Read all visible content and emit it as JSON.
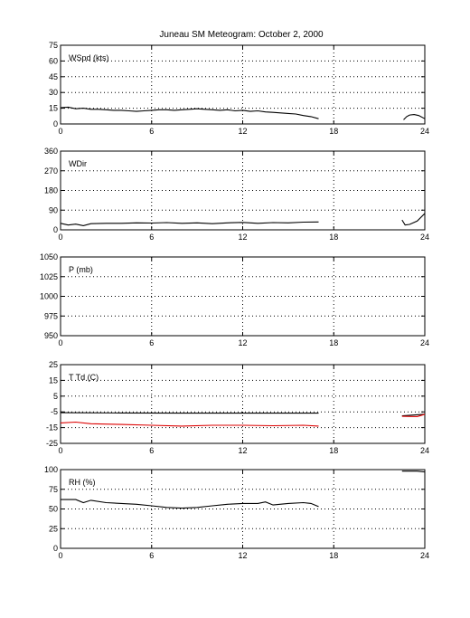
{
  "title": "Juneau SM Meteogram:    October  2, 2000",
  "colors": {
    "black": "#000000",
    "red": "#dd0000"
  },
  "x_axis": {
    "ticks": [
      "0",
      "6",
      "12",
      "18",
      "24"
    ],
    "range": [
      0,
      24
    ]
  },
  "chart_data": [
    {
      "type": "line",
      "label": "WSpd (kts)",
      "ylim": [
        0,
        75
      ],
      "yticks": [
        "75",
        "60",
        "45",
        "30",
        "15",
        "0"
      ],
      "grid": true,
      "series": [
        {
          "color": "#000000",
          "segments": [
            [
              [
                0,
                15.5
              ],
              [
                0.5,
                16
              ],
              [
                1,
                14.5
              ],
              [
                1.5,
                15
              ],
              [
                2,
                14
              ],
              [
                2.5,
                14
              ],
              [
                3,
                13.5
              ],
              [
                3.5,
                13
              ],
              [
                4,
                13
              ],
              [
                4.5,
                12.5
              ],
              [
                5,
                12
              ],
              [
                5.5,
                12.5
              ],
              [
                6,
                13
              ],
              [
                6.5,
                13.5
              ],
              [
                7,
                13.5
              ],
              [
                7.5,
                13
              ],
              [
                8,
                13.5
              ],
              [
                8.5,
                14
              ],
              [
                9,
                14.5
              ],
              [
                9.5,
                14
              ],
              [
                10,
                13.5
              ],
              [
                10.5,
                13
              ],
              [
                11,
                13.5
              ],
              [
                11.5,
                12.5
              ],
              [
                12,
                13
              ],
              [
                12.5,
                12
              ],
              [
                13,
                12.5
              ],
              [
                13.5,
                11.5
              ],
              [
                14,
                11
              ],
              [
                14.5,
                10.5
              ],
              [
                15,
                10
              ],
              [
                15.5,
                9.5
              ],
              [
                16,
                8
              ],
              [
                16.5,
                7
              ],
              [
                17,
                5
              ]
            ],
            [
              [
                22.6,
                4
              ],
              [
                22.8,
                7
              ],
              [
                23,
                8.5
              ],
              [
                23.3,
                9
              ],
              [
                23.6,
                8
              ],
              [
                24,
                5
              ]
            ]
          ]
        }
      ]
    },
    {
      "type": "line",
      "label": "WDir",
      "ylim": [
        0,
        360
      ],
      "yticks": [
        "360",
        "270",
        "180",
        "90",
        "0"
      ],
      "grid": true,
      "series": [
        {
          "color": "#000000",
          "segments": [
            [
              [
                0,
                30
              ],
              [
                0.5,
                22
              ],
              [
                1,
                26
              ],
              [
                1.5,
                19
              ],
              [
                2,
                28
              ],
              [
                3,
                30
              ],
              [
                4,
                30
              ],
              [
                5,
                32
              ],
              [
                6,
                31
              ],
              [
                7,
                33
              ],
              [
                8,
                30
              ],
              [
                9,
                32
              ],
              [
                10,
                28
              ],
              [
                11,
                32
              ],
              [
                12,
                34
              ],
              [
                13,
                30
              ],
              [
                14,
                33
              ],
              [
                15,
                32
              ],
              [
                16,
                35
              ],
              [
                17,
                36
              ]
            ],
            [
              [
                22.5,
                45
              ],
              [
                22.7,
                22
              ],
              [
                23,
                25
              ],
              [
                23.5,
                40
              ],
              [
                24,
                75
              ]
            ]
          ]
        }
      ]
    },
    {
      "type": "line",
      "label": "P (mb)",
      "ylim": [
        950,
        1050
      ],
      "yticks": [
        "1050",
        "1025",
        "1000",
        "975",
        "950"
      ],
      "grid": true,
      "series": []
    },
    {
      "type": "line",
      "label": "T Td (C)",
      "ylim": [
        -25,
        25
      ],
      "yticks": [
        "25",
        "15",
        "5",
        "-5",
        "-15",
        "-25"
      ],
      "grid": true,
      "series": [
        {
          "color": "#000000",
          "segments": [
            [
              [
                0,
                -5.5
              ],
              [
                4,
                -5.7
              ],
              [
                8,
                -5.8
              ],
              [
                12,
                -5.8
              ],
              [
                17,
                -5.8
              ]
            ],
            [
              [
                22.5,
                -7.5
              ],
              [
                24,
                -6.5
              ]
            ]
          ]
        },
        {
          "color": "#dd0000",
          "segments": [
            [
              [
                0,
                -12
              ],
              [
                1,
                -11.5
              ],
              [
                2,
                -12.5
              ],
              [
                4,
                -13
              ],
              [
                6,
                -13.5
              ],
              [
                8,
                -14
              ],
              [
                10,
                -13.5
              ],
              [
                12,
                -13.5
              ],
              [
                14,
                -13.8
              ],
              [
                16,
                -13.5
              ],
              [
                17,
                -14
              ]
            ],
            [
              [
                22.5,
                -7.8
              ],
              [
                23.5,
                -8
              ],
              [
                24,
                -6.5
              ]
            ]
          ]
        }
      ]
    },
    {
      "type": "line",
      "label": "RH (%)",
      "ylim": [
        0,
        100
      ],
      "yticks": [
        "100",
        "75",
        "50",
        "25",
        "0"
      ],
      "grid": true,
      "series": [
        {
          "color": "#000000",
          "segments": [
            [
              [
                0,
                62
              ],
              [
                1,
                62
              ],
              [
                1.5,
                58
              ],
              [
                2,
                61
              ],
              [
                3,
                58
              ],
              [
                4,
                57
              ],
              [
                5,
                56
              ],
              [
                6,
                54
              ],
              [
                7,
                52
              ],
              [
                8,
                51
              ],
              [
                9,
                52
              ],
              [
                10,
                54
              ],
              [
                11,
                56
              ],
              [
                12,
                57
              ],
              [
                13,
                57
              ],
              [
                13.5,
                59
              ],
              [
                14,
                55
              ],
              [
                15,
                57
              ],
              [
                16,
                58
              ],
              [
                16.5,
                57
              ],
              [
                17,
                53
              ]
            ],
            [
              [
                22.5,
                98
              ],
              [
                23.5,
                98
              ],
              [
                24,
                97
              ]
            ]
          ]
        }
      ]
    }
  ]
}
